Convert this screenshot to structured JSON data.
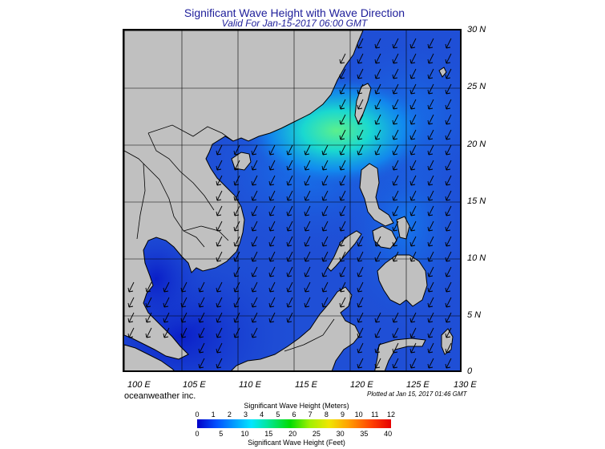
{
  "title": "Significant Wave Height with Wave Direction",
  "subtitle": "Valid For Jan-15-2017 06:00 GMT",
  "lat_labels": [
    "30 N",
    "25 N",
    "20 N",
    "15 N",
    "10 N",
    "5 N",
    "0"
  ],
  "lon_labels": [
    "100 E",
    "105 E",
    "110 E",
    "115 E",
    "120 E",
    "125 E",
    "130 E"
  ],
  "brand": "oceanweather inc.",
  "plotted": "Plotted at Jan 15, 2017 01:46 GMT",
  "legend": {
    "title_meters": "Significant Wave Height (Meters)",
    "title_feet": "Significant Wave Height (Feet)",
    "meters_ticks": [
      "0",
      "1",
      "2",
      "3",
      "4",
      "5",
      "6",
      "7",
      "8",
      "9",
      "10",
      "11",
      "12"
    ],
    "feet_ticks": [
      "0",
      "5",
      "10",
      "15",
      "20",
      "25",
      "30",
      "35",
      "40"
    ]
  },
  "colors": {
    "land": "#c0c0c0",
    "sea_base": "#1f4fd6",
    "sea_low": "#0a2fd0",
    "sea_high": "#22e6c0",
    "peak": "#7df07a"
  },
  "wave_direction": "arrows pointing south-west"
}
